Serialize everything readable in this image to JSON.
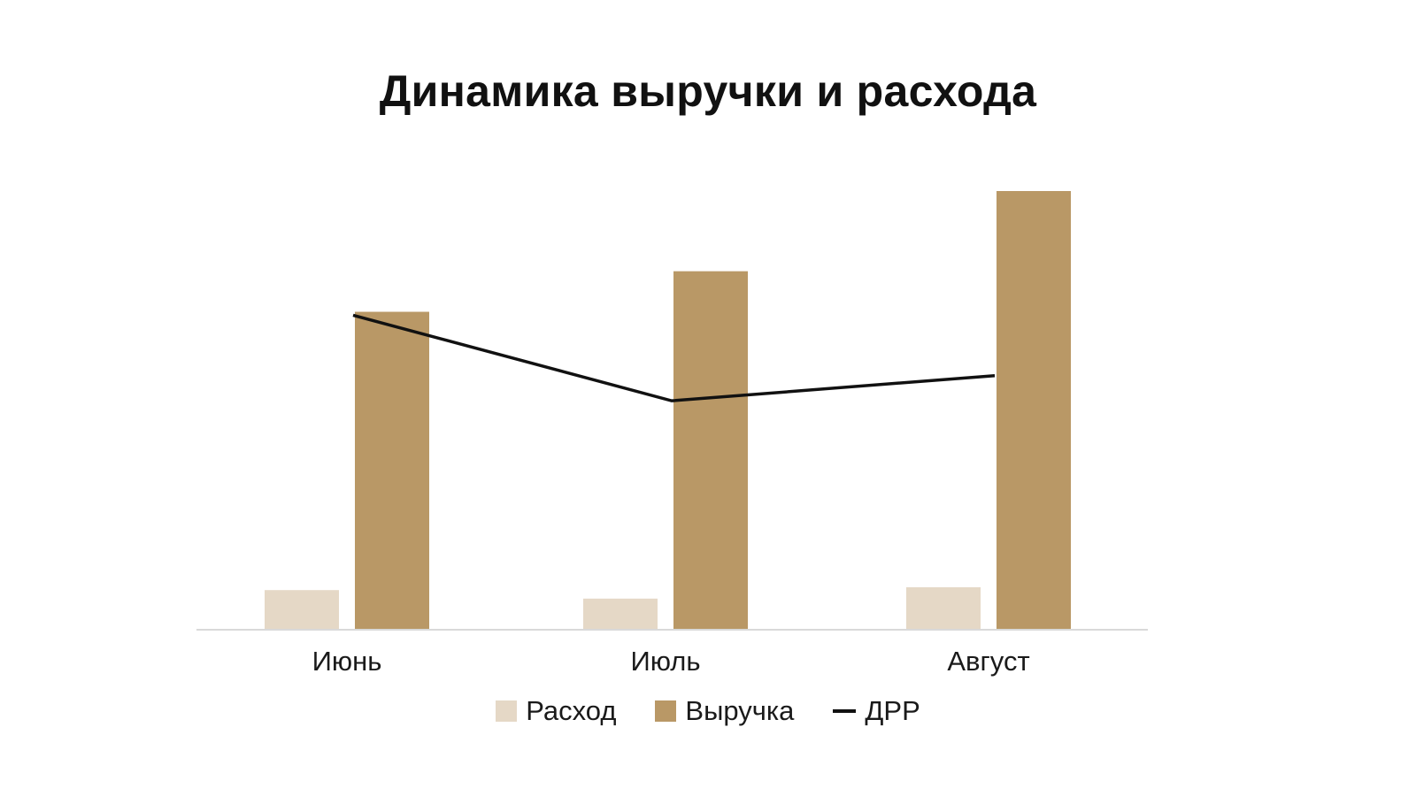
{
  "chart_data": {
    "type": "bar",
    "title": "Динамика выручки и расхода",
    "categories": [
      "Июнь",
      "Июль",
      "Август"
    ],
    "series": [
      {
        "name": "Расход",
        "kind": "bar",
        "color": "#e5d8c6",
        "values": [
          4.2,
          3.3,
          4.5
        ]
      },
      {
        "name": "Выручка",
        "kind": "bar",
        "color": "#b99866",
        "values": [
          33.7,
          38.0,
          46.5
        ]
      },
      {
        "name": "ДРР",
        "kind": "line",
        "color": "#111111",
        "values": [
          12.5,
          9.1,
          10.1
        ]
      }
    ],
    "ylim": [
      0,
      48
    ],
    "y2lim": [
      0,
      18
    ],
    "grid": false,
    "legend_position": "bottom"
  }
}
